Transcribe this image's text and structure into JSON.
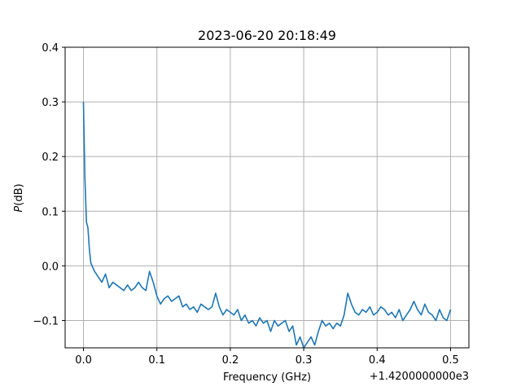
{
  "chart_data": {
    "type": "line",
    "title": "2023-06-20 20:18:49",
    "xlabel": "Frequency (GHz)",
    "ylabel_italic": "P",
    "ylabel_rest": "(dB)",
    "x_offset_label": "+1.4200000000e3",
    "xlim": [
      -0.025,
      0.525
    ],
    "ylim": [
      -0.15,
      0.4
    ],
    "xticks": [
      0.0,
      0.1,
      0.2,
      0.3,
      0.4,
      0.5
    ],
    "xtick_labels": [
      "0.0",
      "0.1",
      "0.2",
      "0.3",
      "0.4",
      "0.5"
    ],
    "yticks": [
      -0.1,
      0.0,
      0.1,
      0.2,
      0.3,
      0.4
    ],
    "ytick_labels": [
      "−0.1",
      "0.0",
      "0.1",
      "0.2",
      "0.3",
      "0.4"
    ],
    "grid": true,
    "line_color": "#1f77b4",
    "series": [
      {
        "x": [
          0.0,
          0.002,
          0.004,
          0.006,
          0.008,
          0.01,
          0.015,
          0.02,
          0.025,
          0.03,
          0.035,
          0.04,
          0.045,
          0.05,
          0.055,
          0.06,
          0.065,
          0.07,
          0.075,
          0.08,
          0.085,
          0.09,
          0.095,
          0.1,
          0.105,
          0.11,
          0.115,
          0.12,
          0.125,
          0.13,
          0.135,
          0.14,
          0.145,
          0.15,
          0.155,
          0.16,
          0.165,
          0.17,
          0.175,
          0.18,
          0.185,
          0.19,
          0.195,
          0.2,
          0.205,
          0.21,
          0.215,
          0.22,
          0.225,
          0.23,
          0.235,
          0.24,
          0.245,
          0.25,
          0.255,
          0.26,
          0.265,
          0.27,
          0.275,
          0.28,
          0.285,
          0.29,
          0.295,
          0.3,
          0.305,
          0.31,
          0.315,
          0.32,
          0.325,
          0.33,
          0.335,
          0.34,
          0.345,
          0.35,
          0.355,
          0.36,
          0.365,
          0.37,
          0.375,
          0.38,
          0.385,
          0.39,
          0.395,
          0.4,
          0.405,
          0.41,
          0.415,
          0.42,
          0.425,
          0.43,
          0.435,
          0.44,
          0.445,
          0.45,
          0.455,
          0.46,
          0.465,
          0.47,
          0.475,
          0.48,
          0.485,
          0.49,
          0.495,
          0.5
        ],
        "y": [
          0.3,
          0.16,
          0.08,
          0.07,
          0.03,
          0.005,
          -0.01,
          -0.02,
          -0.03,
          -0.015,
          -0.04,
          -0.03,
          -0.035,
          -0.04,
          -0.045,
          -0.035,
          -0.045,
          -0.04,
          -0.03,
          -0.04,
          -0.045,
          -0.01,
          -0.03,
          -0.055,
          -0.07,
          -0.06,
          -0.055,
          -0.065,
          -0.06,
          -0.055,
          -0.075,
          -0.07,
          -0.08,
          -0.075,
          -0.085,
          -0.07,
          -0.075,
          -0.08,
          -0.075,
          -0.05,
          -0.075,
          -0.09,
          -0.08,
          -0.085,
          -0.09,
          -0.08,
          -0.1,
          -0.09,
          -0.105,
          -0.1,
          -0.11,
          -0.095,
          -0.105,
          -0.1,
          -0.12,
          -0.1,
          -0.11,
          -0.105,
          -0.1,
          -0.12,
          -0.11,
          -0.145,
          -0.13,
          -0.155,
          -0.14,
          -0.13,
          -0.145,
          -0.12,
          -0.1,
          -0.11,
          -0.105,
          -0.115,
          -0.105,
          -0.11,
          -0.09,
          -0.05,
          -0.07,
          -0.085,
          -0.09,
          -0.08,
          -0.085,
          -0.075,
          -0.09,
          -0.085,
          -0.075,
          -0.08,
          -0.09,
          -0.085,
          -0.095,
          -0.08,
          -0.1,
          -0.09,
          -0.08,
          -0.065,
          -0.08,
          -0.09,
          -0.07,
          -0.085,
          -0.09,
          -0.1,
          -0.08,
          -0.095,
          -0.1,
          -0.08
        ]
      }
    ]
  }
}
